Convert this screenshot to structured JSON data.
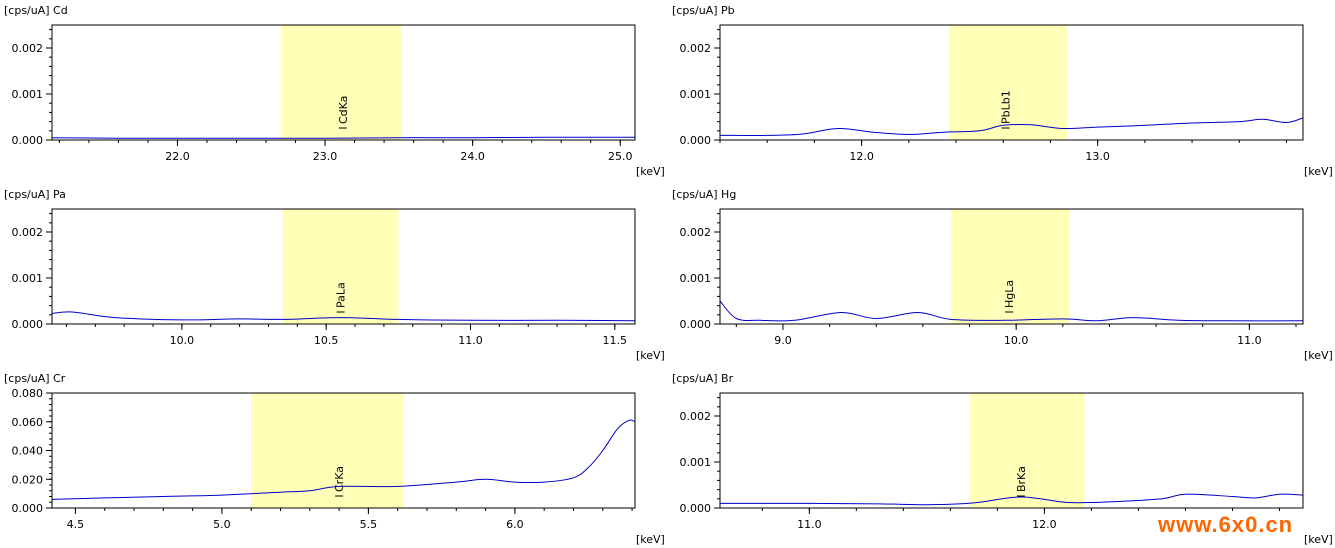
{
  "watermark": "www.6x0.cn",
  "chart_data": [
    {
      "type": "line",
      "title": "[cps/uA] Cd",
      "xlabel": "[keV]",
      "xlim": [
        21.15,
        25.1
      ],
      "ylim": [
        0,
        0.0025
      ],
      "xticks": [
        22.0,
        23.0,
        24.0,
        25.0
      ],
      "xtick_labels": [
        "22.0",
        "23.0",
        "24.0",
        "25.0"
      ],
      "yticks": [
        0,
        0.001,
        0.002
      ],
      "ytick_labels": [
        "0.000",
        "0.001",
        "0.002"
      ],
      "highlight": [
        22.7,
        23.52
      ],
      "marker": {
        "label": "CdKa",
        "x": 23.12
      },
      "series": [
        {
          "color": "#0000cc",
          "x": [
            21.15,
            21.6,
            22.0,
            22.5,
            23.0,
            23.5,
            24.0,
            24.5,
            25.1
          ],
          "y": [
            5e-05,
            4e-05,
            4e-05,
            4e-05,
            4e-05,
            5e-05,
            5e-05,
            6e-05,
            6e-05
          ]
        }
      ]
    },
    {
      "type": "line",
      "title": "[cps/uA] Pb",
      "xlabel": "[keV]",
      "xlim": [
        11.4,
        13.87
      ],
      "ylim": [
        0,
        0.0025
      ],
      "xticks": [
        12.0,
        13.0
      ],
      "xtick_labels": [
        "12.0",
        "13.0"
      ],
      "yticks": [
        0,
        0.001,
        0.002
      ],
      "ytick_labels": [
        "0.000",
        "0.001",
        "0.002"
      ],
      "highlight": [
        12.37,
        12.87
      ],
      "marker": {
        "label": "PbLb1",
        "x": 12.61
      },
      "series": [
        {
          "color": "#0000cc",
          "x": [
            11.4,
            11.6,
            11.75,
            11.9,
            12.05,
            12.2,
            12.35,
            12.5,
            12.6,
            12.72,
            12.85,
            13.0,
            13.2,
            13.4,
            13.6,
            13.7,
            13.8,
            13.87
          ],
          "y": [
            0.0001,
            0.0001,
            0.00013,
            0.00025,
            0.00017,
            0.00012,
            0.00017,
            0.0002,
            0.00032,
            0.00033,
            0.00025,
            0.00028,
            0.00032,
            0.00037,
            0.0004,
            0.00045,
            0.00038,
            0.00048
          ]
        }
      ]
    },
    {
      "type": "line",
      "title": "[cps/uA] Pa",
      "xlabel": "[keV]",
      "xlim": [
        9.55,
        11.57
      ],
      "ylim": [
        0,
        0.0025
      ],
      "xticks": [
        10.0,
        10.5,
        11.0,
        11.5
      ],
      "xtick_labels": [
        "10.0",
        "10.5",
        "11.0",
        "11.5"
      ],
      "yticks": [
        0,
        0.001,
        0.002
      ],
      "ytick_labels": [
        "0.000",
        "0.001",
        "0.002"
      ],
      "highlight": [
        10.35,
        10.75
      ],
      "marker": {
        "label": "PaLa",
        "x": 10.55
      },
      "series": [
        {
          "color": "#0000cc",
          "x": [
            9.55,
            9.62,
            9.75,
            9.9,
            10.05,
            10.2,
            10.35,
            10.55,
            10.75,
            11.0,
            11.3,
            11.57
          ],
          "y": [
            0.00023,
            0.00026,
            0.00015,
            0.0001,
            9e-05,
            0.00011,
            0.0001,
            0.00014,
            0.0001,
            8e-05,
            8e-05,
            7e-05
          ]
        }
      ]
    },
    {
      "type": "line",
      "title": "[cps/uA] Hg",
      "xlabel": "[keV]",
      "xlim": [
        8.73,
        11.23
      ],
      "ylim": [
        0,
        0.0025
      ],
      "xticks": [
        9.0,
        10.0,
        11.0
      ],
      "xtick_labels": [
        "9.0",
        "10.0",
        "11.0"
      ],
      "yticks": [
        0,
        0.001,
        0.002
      ],
      "ytick_labels": [
        "0.000",
        "0.001",
        "0.002"
      ],
      "highlight": [
        9.72,
        10.23
      ],
      "marker": {
        "label": "HgLa",
        "x": 9.97
      },
      "series": [
        {
          "color": "#0000cc",
          "x": [
            8.73,
            8.8,
            8.9,
            9.05,
            9.25,
            9.4,
            9.58,
            9.72,
            9.95,
            10.2,
            10.35,
            10.5,
            10.7,
            10.9,
            11.23
          ],
          "y": [
            0.0005,
            0.00012,
            8e-05,
            8e-05,
            0.00025,
            0.00012,
            0.00025,
            0.0001,
            8e-05,
            0.00011,
            7e-05,
            0.00014,
            8e-05,
            7e-05,
            7e-05
          ]
        }
      ]
    },
    {
      "type": "line",
      "title": "[cps/uA] Cr",
      "xlabel": "[keV]",
      "xlim": [
        4.42,
        6.41
      ],
      "ylim": [
        0,
        0.08
      ],
      "xticks": [
        4.5,
        5.0,
        5.5,
        6.0
      ],
      "xtick_labels": [
        "4.5",
        "5.0",
        "5.5",
        "6.0"
      ],
      "yticks": [
        0,
        0.02,
        0.04,
        0.06,
        0.08
      ],
      "ytick_labels": [
        "0.000",
        "0.020",
        "0.040",
        "0.060",
        "0.080"
      ],
      "highlight": [
        5.1,
        5.62
      ],
      "marker": {
        "label": "CrKa",
        "x": 5.4
      },
      "series": [
        {
          "color": "#0000cc",
          "x": [
            4.42,
            4.6,
            4.8,
            5.0,
            5.2,
            5.3,
            5.4,
            5.6,
            5.8,
            5.9,
            6.0,
            6.1,
            6.2,
            6.25,
            6.3,
            6.35,
            6.39,
            6.41
          ],
          "y": [
            0.006,
            0.007,
            0.008,
            0.009,
            0.011,
            0.012,
            0.015,
            0.015,
            0.018,
            0.02,
            0.018,
            0.018,
            0.021,
            0.028,
            0.04,
            0.055,
            0.061,
            0.06
          ]
        }
      ]
    },
    {
      "type": "line",
      "title": "[cps/uA] Br",
      "xlabel": "[keV]",
      "xlim": [
        10.62,
        13.1
      ],
      "ylim": [
        0,
        0.0025
      ],
      "xticks": [
        11.0,
        12.0
      ],
      "xtick_labels": [
        "11.0",
        "12.0"
      ],
      "yticks": [
        0,
        0.001,
        0.002
      ],
      "ytick_labels": [
        "0.000",
        "0.001",
        "0.002"
      ],
      "highlight": [
        11.68,
        12.17
      ],
      "marker": {
        "label": "BrKa",
        "x": 11.9
      },
      "series": [
        {
          "color": "#0000cc",
          "x": [
            10.62,
            11.0,
            11.3,
            11.5,
            11.7,
            11.9,
            12.1,
            12.3,
            12.5,
            12.6,
            12.8,
            12.9,
            13.0,
            13.1
          ],
          "y": [
            0.0001,
            0.0001,
            9e-05,
            7e-05,
            0.00011,
            0.00024,
            0.00012,
            0.00014,
            0.0002,
            0.0003,
            0.00025,
            0.00022,
            0.0003,
            0.00028
          ]
        }
      ]
    }
  ]
}
